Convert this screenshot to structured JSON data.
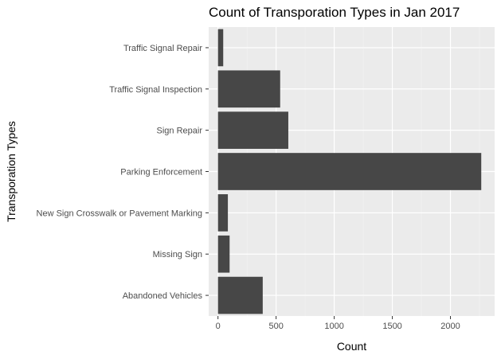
{
  "chart_data": {
    "type": "bar",
    "orientation": "horizontal",
    "title": "Count of Transporation Types in Jan 2017",
    "xlabel": "Count",
    "ylabel": "Transporation Types",
    "categories": [
      "Abandoned Vehicles",
      "Missing Sign",
      "New Sign  Crosswalk or Pavement Marking",
      "Parking Enforcement",
      "Sign Repair",
      "Traffic Signal Inspection",
      "Traffic Signal Repair"
    ],
    "values": [
      385,
      100,
      85,
      2265,
      605,
      535,
      45
    ],
    "xlim": [
      -80,
      2380
    ],
    "xticks": [
      0,
      500,
      1000,
      1500,
      2000
    ],
    "xtick_labels": [
      "0",
      "500",
      "1000",
      "1500",
      "2000"
    ],
    "grid": true,
    "legend": "none",
    "colors": {
      "bar": "#474747",
      "panel": "#ebebeb",
      "grid_major": "#ffffff",
      "grid_minor": "#f3f3f3",
      "tick_text": "#4d4d4d",
      "tick_mark": "#333333"
    }
  }
}
